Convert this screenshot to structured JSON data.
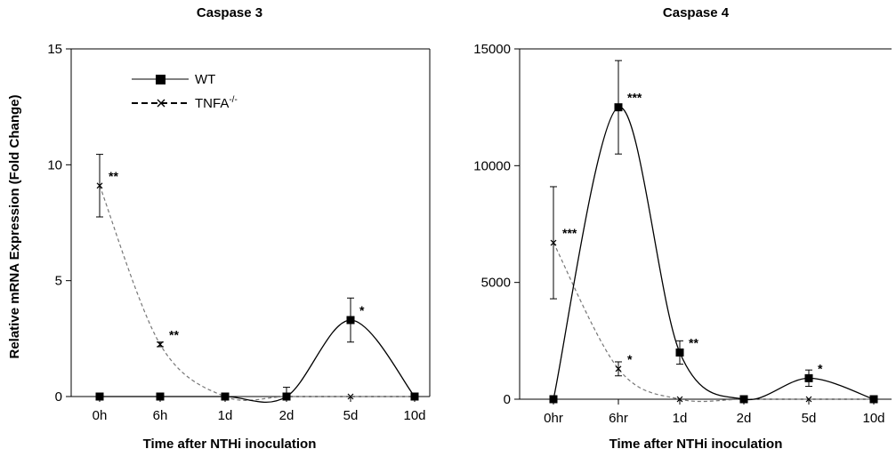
{
  "shared_ylabel": "Relative mRNA Expression (Fold Change)",
  "legend": {
    "wt": "WT",
    "tnfa": "TNFA",
    "tnfa_sup": "-/-"
  },
  "chart_data": [
    {
      "type": "line",
      "title": "Caspase 3",
      "xlabel": "Time after NTHi inoculation",
      "categories": [
        "0h",
        "6h",
        "1d",
        "2d",
        "5d",
        "10d"
      ],
      "ylim": [
        0,
        15
      ],
      "yticks": [
        0,
        5,
        10,
        15
      ],
      "legend_placement": "top-left",
      "grid": false,
      "series": [
        {
          "name": "WT",
          "values": [
            0,
            0,
            0,
            0,
            3.3,
            0
          ],
          "errors": [
            0,
            0,
            0,
            0.4,
            0.95,
            0
          ],
          "color": "#000000",
          "dash": "solid",
          "marker": "square"
        },
        {
          "name": "TNFA-/-",
          "values": [
            9.1,
            2.25,
            0,
            0,
            0,
            0
          ],
          "errors": [
            1.35,
            0.1,
            0,
            0,
            0,
            0
          ],
          "color": "#555555",
          "dash": "dashed",
          "marker": "x"
        }
      ],
      "annotations": [
        {
          "series": 1,
          "index": 0,
          "text": "**"
        },
        {
          "series": 1,
          "index": 1,
          "text": "**"
        },
        {
          "series": 0,
          "index": 4,
          "text": "*"
        }
      ]
    },
    {
      "type": "line",
      "title": "Caspase 4",
      "xlabel": "Time after NTHi inoculation",
      "categories": [
        "0hr",
        "6hr",
        "1d",
        "2d",
        "5d",
        "10d"
      ],
      "ylim": [
        0,
        15000
      ],
      "yticks": [
        0,
        5000,
        10000,
        15000
      ],
      "grid": false,
      "series": [
        {
          "name": "WT",
          "values": [
            0,
            12500,
            2000,
            0,
            900,
            0
          ],
          "errors": [
            0,
            2000,
            500,
            80,
            350,
            0
          ],
          "color": "#000000",
          "dash": "solid",
          "marker": "square"
        },
        {
          "name": "TNFA-/-",
          "values": [
            6700,
            1300,
            0,
            0,
            0,
            0
          ],
          "errors": [
            2400,
            300,
            0,
            0,
            0,
            0
          ],
          "color": "#555555",
          "dash": "dashed",
          "marker": "x"
        }
      ],
      "annotations": [
        {
          "series": 1,
          "index": 0,
          "text": "***"
        },
        {
          "series": 0,
          "index": 1,
          "text": "***"
        },
        {
          "series": 1,
          "index": 1,
          "text": "*"
        },
        {
          "series": 0,
          "index": 2,
          "text": "**"
        },
        {
          "series": 0,
          "index": 4,
          "text": "*"
        }
      ]
    }
  ]
}
